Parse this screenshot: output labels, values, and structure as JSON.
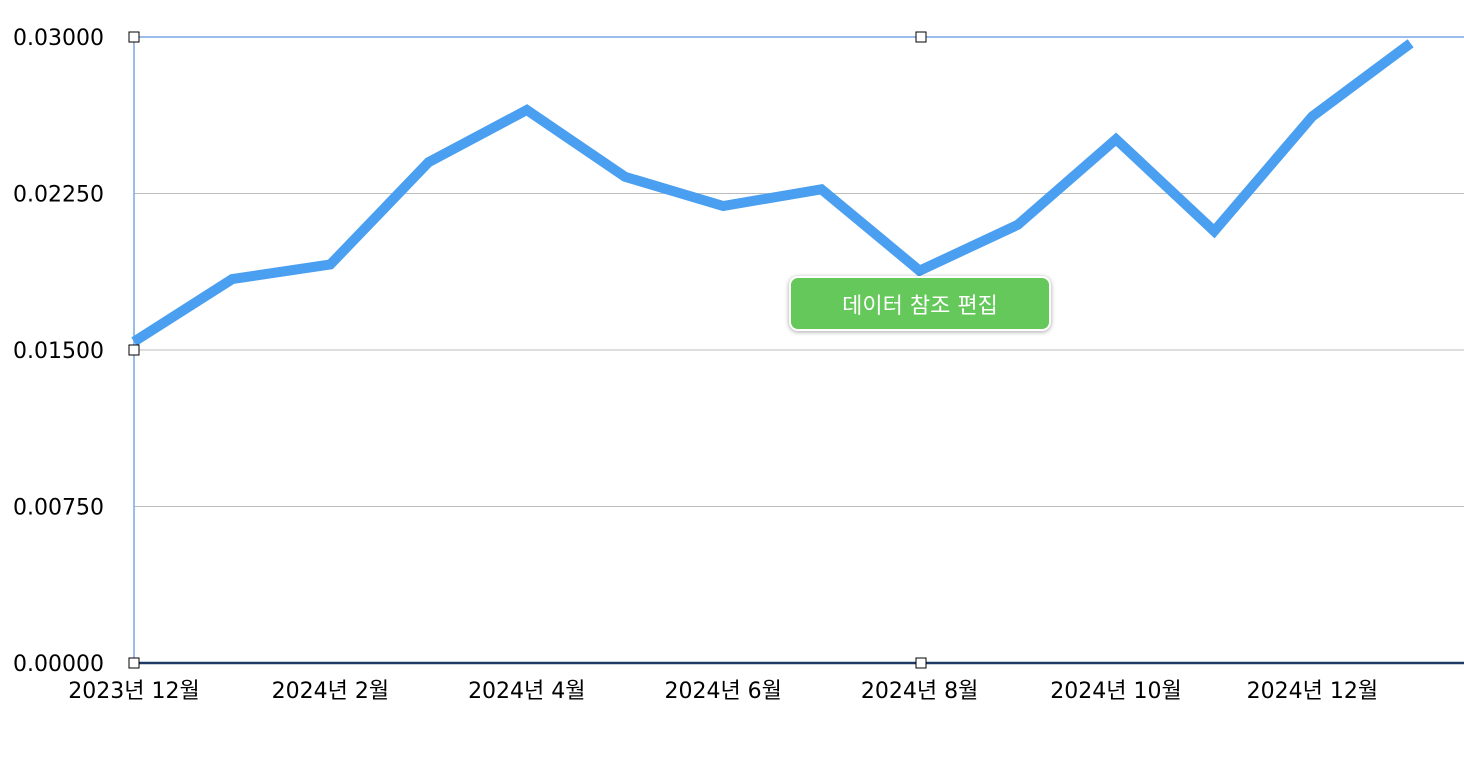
{
  "colors": {
    "line": "#4a9ff0",
    "grid": "#bdbdbd",
    "selection": "#7aa7e8",
    "baseline": "#1f3a66",
    "button": "#65c85a",
    "button_text": "#ffffff"
  },
  "edit_button": {
    "label": "데이터 참조 편집"
  },
  "chart_data": {
    "type": "line",
    "title": "",
    "xlabel": "",
    "ylabel": "",
    "ylim": [
      0,
      0.03
    ],
    "y_ticks": [
      "0.00000",
      "0.00750",
      "0.01500",
      "0.02250",
      "0.03000"
    ],
    "x_tick_labels": [
      "2023년 12월",
      "2024년 2월",
      "2024년 4월",
      "2024년 6월",
      "2024년 8월",
      "2024년 10월",
      "2024년 12월"
    ],
    "grid": true,
    "x": [
      "2023-12",
      "2024-01",
      "2024-02",
      "2024-03",
      "2024-04",
      "2024-05",
      "2024-06",
      "2024-07",
      "2024-08",
      "2024-09",
      "2024-10",
      "2024-11",
      "2024-12",
      "2025-01"
    ],
    "series": [
      {
        "values": [
          0.0154,
          0.0184,
          0.0191,
          0.024,
          0.0265,
          0.0233,
          0.0219,
          0.0227,
          0.0188,
          0.021,
          0.0251,
          0.0207,
          0.0262,
          0.0297
        ]
      }
    ]
  }
}
